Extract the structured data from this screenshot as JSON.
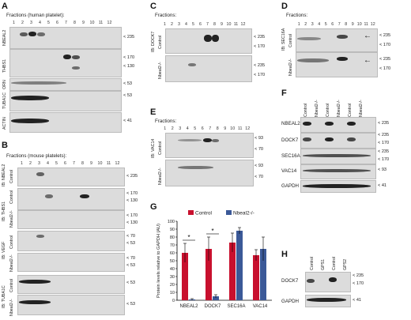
{
  "panel_labels": {
    "A": "A",
    "B": "B",
    "C": "C",
    "D": "D",
    "E": "E",
    "F": "F",
    "G": "G",
    "H": "H"
  },
  "captions": {
    "A": "Fractions (human platelet):",
    "B": "Fractions (mouse platelets):",
    "C": "Fractions:",
    "D": "Fractions:",
    "E": "Fractions:"
  },
  "lanes": [
    "1",
    "2",
    "3",
    "4",
    "5",
    "6",
    "7",
    "8",
    "9",
    "10",
    "11",
    "12"
  ],
  "panelA": {
    "rows": [
      "NBEAL2",
      "THBS1",
      "ORN",
      "TUBA1C",
      "ACTIN"
    ],
    "mw": [
      "< 235",
      "< 170",
      "< 130",
      "< 53",
      "< 53",
      "< 41"
    ]
  },
  "panelB": {
    "ib_labels": [
      "IB: NBEAL2",
      "IB: THBS1",
      "IB: VEGF",
      "IB: TUBA1C"
    ],
    "genotypes": [
      "Control",
      "Control",
      "Nbeal2-/-",
      "Control",
      "Nbeal2-/-",
      "Control",
      "Nbeal2-/-"
    ],
    "mw": [
      "< 235",
      "< 170",
      "< 130",
      "< 170",
      "< 130",
      "< 70",
      "< 53",
      "< 70",
      "< 53",
      "< 53",
      "< 53"
    ]
  },
  "panelC": {
    "ib": "IB: DOCK7",
    "genotypes": [
      "Control",
      "Nbeal2-/-"
    ],
    "mw": [
      "< 235",
      "< 170",
      "< 235",
      "< 170"
    ]
  },
  "panelD": {
    "ib": "IB: SEC16A",
    "genotypes": [
      "Control",
      "Nbeal2-/-"
    ],
    "mw": [
      "< 235",
      "< 170",
      "< 235",
      "< 170"
    ]
  },
  "panelE": {
    "ib": "IB: VAC14",
    "genotypes": [
      "Control",
      "Nbeal2-/-"
    ],
    "mw": [
      "< 93",
      "< 70",
      "< 93",
      "< 70"
    ]
  },
  "panelF": {
    "columns": [
      "Control",
      "Nbeal2-/-",
      "Control",
      "Nbeal2-/-",
      "Control",
      "Nbeal2-/-"
    ],
    "rows": [
      "NBEAL2",
      "DOCK7",
      "SEC16A",
      "VAC14",
      "GAPDH"
    ],
    "mw": [
      "< 235",
      "< 235",
      "< 170",
      "< 235",
      "< 170",
      "< 93",
      "< 41"
    ]
  },
  "panelH": {
    "columns": [
      "Control",
      "GPS1",
      "Control",
      "GPS2"
    ],
    "rows": [
      "DOCK7",
      "GAPDH"
    ],
    "mw": [
      "< 235",
      "< 170",
      "< 41"
    ]
  },
  "chart_data": {
    "type": "bar",
    "categories": [
      "NBEAL2",
      "DOCK7",
      "SEC16A",
      "VAC14"
    ],
    "series": [
      {
        "name": "Control",
        "values": [
          60,
          65,
          73,
          57
        ],
        "errors": [
          12,
          15,
          12,
          7
        ],
        "color": "#c8102e"
      },
      {
        "name": "Nbeal2-/-",
        "values": [
          1,
          5,
          88,
          65
        ],
        "errors": [
          1,
          2,
          4,
          15
        ],
        "color": "#3b5998"
      }
    ],
    "ylabel": "Protein levels relative to GAPDH (AU)",
    "ylim": [
      0,
      100
    ],
    "yticks": [
      0,
      10,
      20,
      30,
      40,
      50,
      60,
      70,
      80,
      90,
      100
    ],
    "significance": [
      "*",
      "*"
    ]
  }
}
